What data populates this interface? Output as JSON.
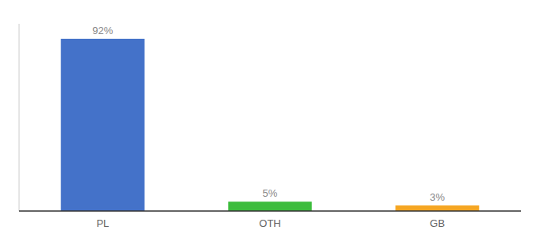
{
  "chart_data": {
    "type": "bar",
    "categories": [
      "PL",
      "OTH",
      "GB"
    ],
    "values": [
      92,
      5,
      3
    ],
    "value_labels": [
      "92%",
      "5%",
      "3%"
    ],
    "colors": [
      "#4472c9",
      "#3dbc3d",
      "#f5a623"
    ],
    "ylim": [
      0,
      100
    ],
    "data_labels": true,
    "tick_labels": "x",
    "grid": false
  }
}
